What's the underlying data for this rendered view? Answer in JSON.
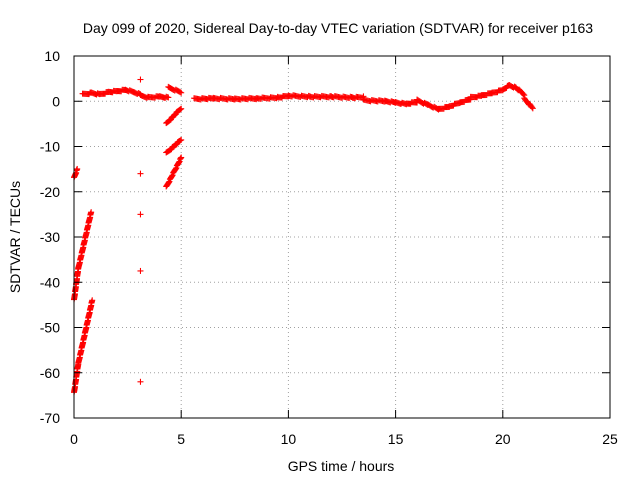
{
  "chart_data": {
    "type": "scatter",
    "title": "Day 099 of 2020, Sidereal Day-to-day VTEC variation (SDTVAR) for receiver p163",
    "xlabel": "GPS time / hours",
    "ylabel": "SDTVAR / TECUs",
    "xlim": [
      0,
      25
    ],
    "ylim": [
      -70,
      10
    ],
    "xticks": [
      0,
      5,
      10,
      15,
      20,
      25
    ],
    "yticks": [
      -70,
      -60,
      -50,
      -40,
      -30,
      -20,
      -10,
      0,
      10
    ],
    "xtick_labels": [
      "0",
      "5",
      "10",
      "15",
      "20",
      "25"
    ],
    "ytick_labels": [
      "-70",
      "-60",
      "-50",
      "-40",
      "-30",
      "-20",
      "-10",
      "0",
      "10"
    ],
    "grid": true,
    "marker": "+",
    "marker_color": "#ff0000",
    "series": [
      {
        "name": "SDTVAR",
        "segments": [
          {
            "x": [
              0.0,
              0.15
            ],
            "y": [
              -17.0,
              -15.0
            ]
          },
          {
            "x": [
              0.0,
              0.2
            ],
            "y": [
              -44.0,
              -37.0
            ]
          },
          {
            "x": [
              0.2,
              0.8
            ],
            "y": [
              -37.0,
              -24.5
            ]
          },
          {
            "x": [
              0.0,
              0.2
            ],
            "y": [
              -64.5,
              -58.0
            ]
          },
          {
            "x": [
              0.2,
              0.85
            ],
            "y": [
              -58.0,
              -44.0
            ]
          },
          {
            "x": [
              0.4,
              0.8,
              1.2,
              1.6,
              2.0,
              2.4,
              2.8,
              3.1
            ],
            "y": [
              1.5,
              1.8,
              1.5,
              2.0,
              2.2,
              2.5,
              2.0,
              1.5
            ]
          },
          {
            "x": [
              3.1,
              3.5,
              4.0,
              4.4
            ],
            "y": [
              1.2,
              0.8,
              1.0,
              0.8
            ]
          },
          {
            "x": [
              4.4,
              5.0
            ],
            "y": [
              3.0,
              2.0
            ]
          },
          {
            "x": [
              4.3,
              5.0
            ],
            "y": [
              -5.0,
              -1.5
            ]
          },
          {
            "x": [
              4.3,
              5.0
            ],
            "y": [
              -11.5,
              -8.5
            ]
          },
          {
            "x": [
              4.3,
              5.0
            ],
            "y": [
              -19.0,
              -12.5
            ]
          },
          {
            "x": [
              5.6,
              6.5,
              7.5,
              8.5,
              9.5,
              10.0,
              11.0,
              12.0,
              13.0,
              13.5
            ],
            "y": [
              0.5,
              0.6,
              0.5,
              0.6,
              0.8,
              1.2,
              1.0,
              1.0,
              0.8,
              0.9
            ]
          },
          {
            "x": [
              13.5,
              14.5,
              15.0,
              15.5,
              16.0
            ],
            "y": [
              0.2,
              0.0,
              -0.3,
              -0.6,
              -0.2
            ]
          },
          {
            "x": [
              16.0,
              16.5,
              17.0,
              17.5,
              18.0,
              18.5
            ],
            "y": [
              0.2,
              -0.8,
              -1.8,
              -1.2,
              -0.3,
              0.5
            ]
          },
          {
            "x": [
              18.5,
              19.0,
              19.5,
              20.0,
              20.3,
              20.6,
              21.0
            ],
            "y": [
              0.8,
              1.2,
              1.8,
              2.5,
              3.5,
              3.0,
              1.5
            ]
          },
          {
            "x": [
              21.0,
              21.4
            ],
            "y": [
              0.5,
              -1.5
            ]
          }
        ],
        "isolated": [
          {
            "x": 3.1,
            "y": 4.8
          },
          {
            "x": 3.1,
            "y": -16.0
          },
          {
            "x": 3.1,
            "y": -25.0
          },
          {
            "x": 3.1,
            "y": -37.5
          },
          {
            "x": 3.1,
            "y": -62.0
          }
        ]
      }
    ]
  }
}
